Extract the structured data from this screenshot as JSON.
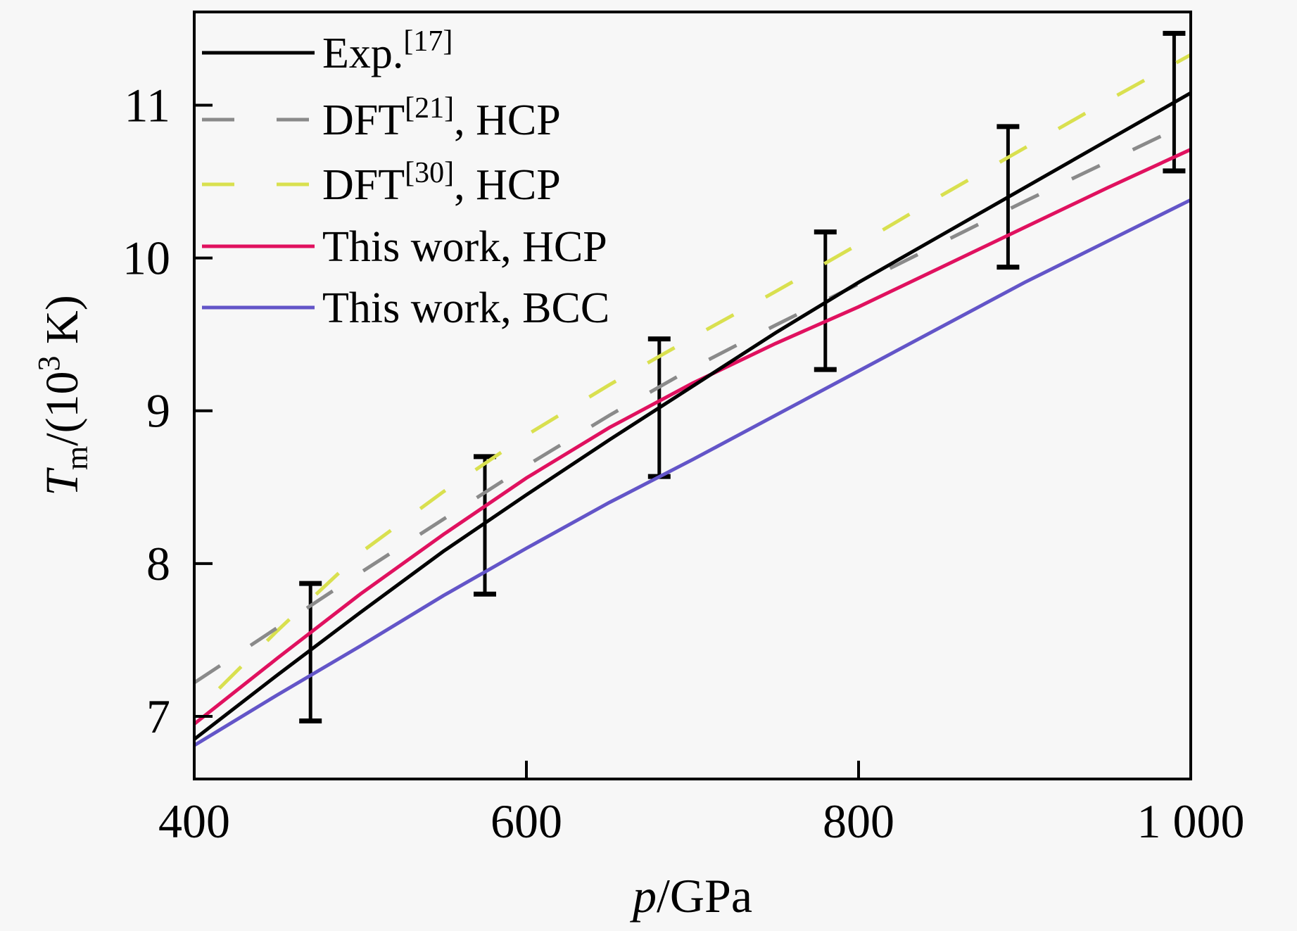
{
  "colors": {
    "background": "#f7f7f7",
    "frame": "#000000",
    "text": "#000000"
  },
  "chart_data": {
    "type": "line",
    "title": "",
    "xlabel": {
      "italic": "p",
      "rest": "/GPa"
    },
    "ylabel": {
      "italic": "T",
      "sub": "m",
      "mid": "/(10",
      "sup": "3",
      "end": " K)"
    },
    "xlim": [
      400,
      1000
    ],
    "ylim": [
      6.59,
      11.61
    ],
    "x_ticks": [
      400,
      600,
      800,
      1000
    ],
    "x_tick_labels": [
      "400",
      "600",
      "800",
      "1 000"
    ],
    "y_ticks": [
      7,
      8,
      9,
      10,
      11
    ],
    "y_tick_labels": [
      "7",
      "8",
      "9",
      "10",
      "11"
    ],
    "grid": false,
    "legend_position": "inside-top-left",
    "x": [
      400,
      450,
      500,
      550,
      600,
      650,
      700,
      750,
      800,
      850,
      900,
      950,
      1000
    ],
    "series": [
      {
        "id": "exp17",
        "label": {
          "pre": "Exp.",
          "sup": "[17]",
          "post": ""
        },
        "color": "#000000",
        "dash": "solid",
        "values": [
          6.85,
          7.27,
          7.68,
          8.08,
          8.45,
          8.81,
          9.16,
          9.51,
          9.84,
          10.15,
          10.46,
          10.77,
          11.08
        ]
      },
      {
        "id": "dft21-hcp",
        "label": {
          "pre": "DFT",
          "sup": "[21]",
          "post": ", HCP"
        },
        "color": "#8a8a8a",
        "dash": "dashed",
        "values": [
          7.22,
          7.58,
          7.94,
          8.29,
          8.64,
          8.97,
          9.28,
          9.56,
          9.83,
          10.1,
          10.37,
          10.63,
          10.89
        ]
      },
      {
        "id": "dft30-hcp",
        "label": {
          "pre": "DFT",
          "sup": "[30]",
          "post": ", HCP"
        },
        "color": "#d9e04f",
        "dash": "dashed",
        "values": [
          7.02,
          7.56,
          8.07,
          8.47,
          8.84,
          9.17,
          9.48,
          9.78,
          10.09,
          10.41,
          10.72,
          11.03,
          11.33
        ]
      },
      {
        "id": "this-work-hcp",
        "label": {
          "pre": "This work, HCP",
          "sup": "",
          "post": ""
        },
        "color": "#e0115f",
        "dash": "solid",
        "values": [
          6.95,
          7.38,
          7.8,
          8.19,
          8.56,
          8.89,
          9.18,
          9.44,
          9.68,
          9.94,
          10.2,
          10.46,
          10.71
        ]
      },
      {
        "id": "this-work-bcc",
        "label": {
          "pre": "This work, BCC",
          "sup": "",
          "post": ""
        },
        "color": "#6355c8",
        "dash": "solid",
        "values": [
          6.81,
          7.14,
          7.46,
          7.79,
          8.1,
          8.4,
          8.68,
          8.97,
          9.26,
          9.55,
          9.84,
          10.11,
          10.38
        ]
      }
    ],
    "error_bars": {
      "on_series": "exp17",
      "color": "#000000",
      "p": [
        470,
        575,
        680,
        780,
        890,
        990
      ],
      "center": [
        7.42,
        8.25,
        9.02,
        9.72,
        10.4,
        11.02
      ],
      "low": [
        6.97,
        7.8,
        8.57,
        9.27,
        9.94,
        10.57
      ],
      "high": [
        7.87,
        8.7,
        9.47,
        10.17,
        10.86,
        11.47
      ]
    }
  }
}
